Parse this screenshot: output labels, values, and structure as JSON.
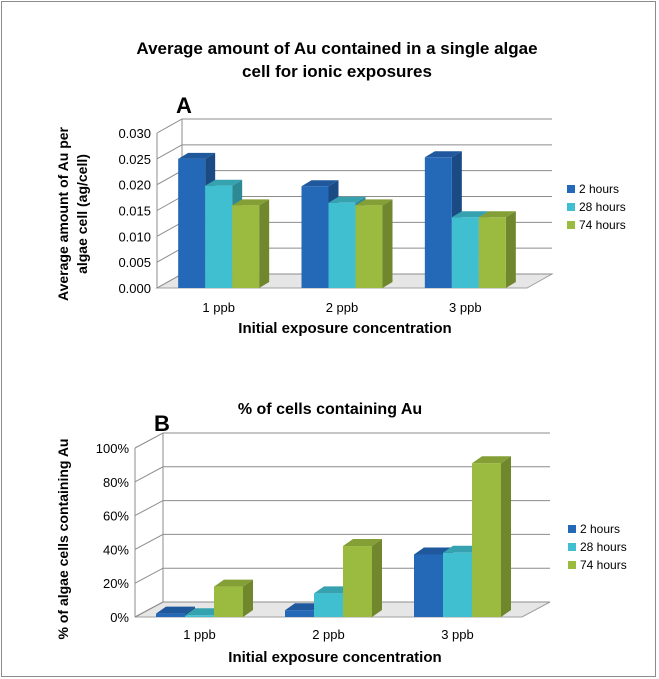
{
  "figure": {
    "panel_a_letter": "A",
    "panel_b_letter": "B"
  },
  "colors": {
    "2 hours": "#2468b8",
    "28 hours": "#3fbfcf",
    "74 hours": "#9bbb40",
    "floor": "#e6e6e6",
    "grid": "#8c8c8c"
  },
  "chart_data": [
    {
      "type": "bar",
      "title_line1": "Average amount of Au contained in a single algae",
      "title_line2": "cell for ionic exposures",
      "xlabel": "Initial exposure concentration",
      "ylabel_line1": "Average amount of Au per",
      "ylabel_line2": "algae cell (ag/cell)",
      "categories": [
        "1 ppb",
        "2 ppb",
        "3 ppb"
      ],
      "yticks": [
        "0.000",
        "0.005",
        "0.010",
        "0.015",
        "0.020",
        "0.025",
        "0.030"
      ],
      "ylim": [
        0,
        0.03
      ],
      "legend_position": "right",
      "series": [
        {
          "name": "2 hours",
          "values": [
            0.025,
            0.0197,
            0.0253
          ]
        },
        {
          "name": "28 hours",
          "values": [
            0.0198,
            0.0165,
            0.0137
          ]
        },
        {
          "name": "74 hours",
          "values": [
            0.016,
            0.016,
            0.0137
          ]
        }
      ]
    },
    {
      "type": "bar",
      "title": "%  of cells containing Au",
      "xlabel": "Initial exposure concentration",
      "ylabel": "% of algae cells containing Au",
      "categories": [
        "1 ppb",
        "2 ppb",
        "3 ppb"
      ],
      "yticks": [
        "0%",
        "20%",
        "40%",
        "60%",
        "80%",
        "100%"
      ],
      "ylim": [
        0,
        100
      ],
      "legend_position": "right",
      "series": [
        {
          "name": "2 hours",
          "values": [
            2,
            4,
            37
          ]
        },
        {
          "name": "28 hours",
          "values": [
            1,
            14,
            38
          ]
        },
        {
          "name": "74 hours",
          "values": [
            18,
            42,
            91
          ]
        }
      ]
    }
  ]
}
